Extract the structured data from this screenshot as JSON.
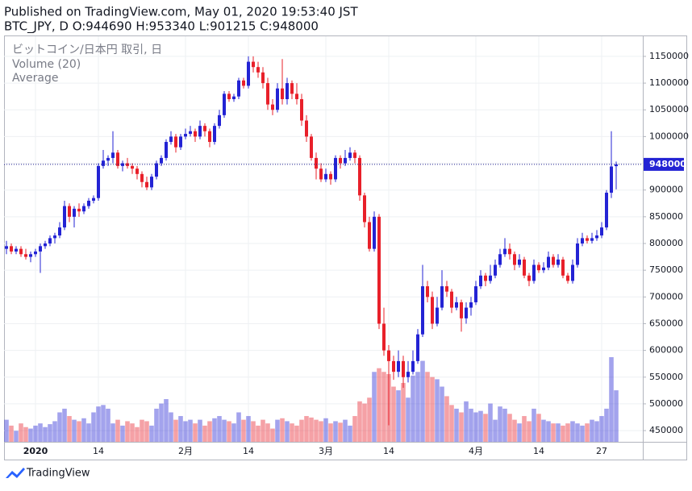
{
  "chart_data": {
    "type": "candlestick",
    "title": "Published on TradingView.com, May 01, 2020 19:53:40 JST",
    "subtitle": "BTC_JPY, D O:944690 H:953340 L:901215 C:948000",
    "legend": [
      "ビットコイン/日本円 取引, 日",
      "Volume (20)",
      "Average"
    ],
    "up_color": "#2323d4",
    "down_color": "#e8202a",
    "grid": true,
    "ylim": [
      429000,
      1168000
    ],
    "yticks": [
      450000,
      500000,
      550000,
      600000,
      650000,
      700000,
      750000,
      800000,
      850000,
      900000,
      950000,
      1000000,
      1050000,
      1100000,
      1150000
    ],
    "categories": [
      null,
      null,
      null,
      null,
      null,
      null,
      "2020",
      null,
      null,
      null,
      null,
      null,
      null,
      null,
      null,
      null,
      null,
      null,
      null,
      "14",
      null,
      null,
      null,
      null,
      null,
      null,
      null,
      null,
      null,
      null,
      null,
      null,
      null,
      null,
      null,
      null,
      null,
      "2月",
      null,
      null,
      null,
      null,
      null,
      null,
      null,
      null,
      null,
      null,
      null,
      null,
      "14",
      null,
      null,
      null,
      null,
      null,
      null,
      null,
      null,
      null,
      null,
      null,
      null,
      null,
      null,
      null,
      "3月",
      null,
      null,
      null,
      null,
      null,
      null,
      null,
      null,
      null,
      null,
      null,
      null,
      "14",
      null,
      null,
      null,
      null,
      null,
      null,
      null,
      null,
      null,
      null,
      null,
      null,
      null,
      null,
      null,
      null,
      null,
      "4月",
      null,
      null,
      null,
      null,
      null,
      null,
      null,
      null,
      null,
      null,
      null,
      null,
      "14",
      null,
      null,
      null,
      null,
      null,
      null,
      null,
      null,
      null,
      null,
      null,
      null,
      "27",
      null,
      null,
      null
    ],
    "ohlc": [
      [
        790000,
        805000,
        780000,
        795000
      ],
      [
        795000,
        800000,
        780000,
        785000
      ],
      [
        785000,
        795000,
        780000,
        790000
      ],
      [
        790000,
        795000,
        775000,
        780000
      ],
      [
        780000,
        790000,
        770000,
        775000
      ],
      [
        775000,
        785000,
        765000,
        780000
      ],
      [
        780000,
        790000,
        775000,
        785000
      ],
      [
        785000,
        800000,
        745000,
        795000
      ],
      [
        795000,
        805000,
        790000,
        800000
      ],
      [
        800000,
        815000,
        795000,
        810000
      ],
      [
        810000,
        820000,
        800000,
        815000
      ],
      [
        815000,
        840000,
        810000,
        830000
      ],
      [
        830000,
        880000,
        825000,
        870000
      ],
      [
        870000,
        875000,
        840000,
        850000
      ],
      [
        850000,
        870000,
        830000,
        865000
      ],
      [
        865000,
        875000,
        850000,
        860000
      ],
      [
        860000,
        875000,
        855000,
        870000
      ],
      [
        870000,
        885000,
        865000,
        880000
      ],
      [
        880000,
        890000,
        875000,
        885000
      ],
      [
        885000,
        950000,
        880000,
        945000
      ],
      [
        945000,
        975000,
        940000,
        955000
      ],
      [
        955000,
        965000,
        945000,
        960000
      ],
      [
        960000,
        1010000,
        950000,
        970000
      ],
      [
        970000,
        975000,
        940000,
        945000
      ],
      [
        945000,
        955000,
        935000,
        950000
      ],
      [
        950000,
        960000,
        940000,
        945000
      ],
      [
        945000,
        950000,
        930000,
        940000
      ],
      [
        940000,
        945000,
        920000,
        930000
      ],
      [
        930000,
        935000,
        905000,
        915000
      ],
      [
        915000,
        925000,
        900000,
        905000
      ],
      [
        905000,
        930000,
        900000,
        925000
      ],
      [
        925000,
        955000,
        920000,
        950000
      ],
      [
        950000,
        965000,
        945000,
        960000
      ],
      [
        960000,
        995000,
        955000,
        990000
      ],
      [
        990000,
        1010000,
        985000,
        1000000
      ],
      [
        1000000,
        1005000,
        970000,
        980000
      ],
      [
        980000,
        1005000,
        975000,
        1000000
      ],
      [
        1000000,
        1015000,
        995000,
        1005000
      ],
      [
        1005000,
        1020000,
        1000000,
        1010000
      ],
      [
        1010000,
        1015000,
        990000,
        1000000
      ],
      [
        1000000,
        1030000,
        995000,
        1020000
      ],
      [
        1020000,
        1025000,
        1000000,
        1010000
      ],
      [
        1010000,
        1015000,
        980000,
        990000
      ],
      [
        990000,
        1025000,
        985000,
        1020000
      ],
      [
        1020000,
        1050000,
        1015000,
        1040000
      ],
      [
        1040000,
        1085000,
        1035000,
        1080000
      ],
      [
        1080000,
        1085000,
        1065000,
        1070000
      ],
      [
        1070000,
        1080000,
        1065000,
        1075000
      ],
      [
        1075000,
        1110000,
        1070000,
        1105000
      ],
      [
        1105000,
        1110000,
        1090000,
        1095000
      ],
      [
        1095000,
        1150000,
        1090000,
        1140000
      ],
      [
        1140000,
        1150000,
        1120000,
        1130000
      ],
      [
        1130000,
        1140000,
        1110000,
        1120000
      ],
      [
        1120000,
        1130000,
        1090000,
        1100000
      ],
      [
        1100000,
        1110000,
        1050000,
        1060000
      ],
      [
        1060000,
        1070000,
        1040000,
        1050000
      ],
      [
        1050000,
        1100000,
        1045000,
        1090000
      ],
      [
        1090000,
        1145000,
        1060000,
        1070000
      ],
      [
        1070000,
        1110000,
        1060000,
        1100000
      ],
      [
        1100000,
        1105000,
        1070000,
        1080000
      ],
      [
        1080000,
        1100000,
        1060000,
        1070000
      ],
      [
        1070000,
        1080000,
        1020000,
        1030000
      ],
      [
        1030000,
        1040000,
        990000,
        1000000
      ],
      [
        1000000,
        1005000,
        955000,
        960000
      ],
      [
        960000,
        970000,
        920000,
        940000
      ],
      [
        940000,
        950000,
        915000,
        920000
      ],
      [
        920000,
        940000,
        915000,
        930000
      ],
      [
        930000,
        935000,
        910000,
        920000
      ],
      [
        920000,
        965000,
        915000,
        960000
      ],
      [
        960000,
        965000,
        940000,
        950000
      ],
      [
        950000,
        975000,
        945000,
        960000
      ],
      [
        960000,
        980000,
        955000,
        970000
      ],
      [
        970000,
        975000,
        950000,
        960000
      ],
      [
        960000,
        965000,
        880000,
        890000
      ],
      [
        890000,
        895000,
        830000,
        840000
      ],
      [
        840000,
        850000,
        785000,
        790000
      ],
      [
        790000,
        860000,
        785000,
        850000
      ],
      [
        850000,
        855000,
        640000,
        650000
      ],
      [
        650000,
        680000,
        590000,
        600000
      ],
      [
        600000,
        610000,
        460000,
        580000
      ],
      [
        580000,
        590000,
        545000,
        560000
      ],
      [
        560000,
        600000,
        550000,
        580000
      ],
      [
        580000,
        590000,
        530000,
        550000
      ],
      [
        550000,
        580000,
        540000,
        560000
      ],
      [
        560000,
        600000,
        555000,
        580000
      ],
      [
        580000,
        640000,
        575000,
        630000
      ],
      [
        630000,
        760000,
        625000,
        720000
      ],
      [
        720000,
        730000,
        690000,
        700000
      ],
      [
        700000,
        710000,
        640000,
        650000
      ],
      [
        650000,
        700000,
        645000,
        680000
      ],
      [
        680000,
        750000,
        675000,
        720000
      ],
      [
        720000,
        730000,
        700000,
        710000
      ],
      [
        710000,
        715000,
        670000,
        680000
      ],
      [
        680000,
        700000,
        675000,
        690000
      ],
      [
        690000,
        695000,
        635000,
        660000
      ],
      [
        660000,
        690000,
        650000,
        680000
      ],
      [
        680000,
        700000,
        665000,
        690000
      ],
      [
        690000,
        730000,
        685000,
        720000
      ],
      [
        720000,
        750000,
        715000,
        740000
      ],
      [
        740000,
        745000,
        720000,
        730000
      ],
      [
        730000,
        760000,
        725000,
        740000
      ],
      [
        740000,
        770000,
        735000,
        760000
      ],
      [
        760000,
        790000,
        755000,
        780000
      ],
      [
        780000,
        810000,
        775000,
        790000
      ],
      [
        790000,
        800000,
        770000,
        780000
      ],
      [
        780000,
        785000,
        750000,
        760000
      ],
      [
        760000,
        780000,
        755000,
        770000
      ],
      [
        770000,
        775000,
        735000,
        740000
      ],
      [
        740000,
        745000,
        720000,
        730000
      ],
      [
        730000,
        770000,
        725000,
        760000
      ],
      [
        760000,
        765000,
        745000,
        750000
      ],
      [
        750000,
        765000,
        745000,
        755000
      ],
      [
        755000,
        785000,
        750000,
        775000
      ],
      [
        775000,
        780000,
        755000,
        760000
      ],
      [
        760000,
        780000,
        755000,
        770000
      ],
      [
        770000,
        775000,
        735000,
        740000
      ],
      [
        740000,
        745000,
        725000,
        730000
      ],
      [
        730000,
        770000,
        725000,
        760000
      ],
      [
        760000,
        810000,
        755000,
        800000
      ],
      [
        800000,
        820000,
        795000,
        810000
      ],
      [
        810000,
        815000,
        800000,
        805000
      ],
      [
        805000,
        820000,
        800000,
        810000
      ],
      [
        810000,
        825000,
        805000,
        815000
      ],
      [
        815000,
        840000,
        810000,
        830000
      ],
      [
        830000,
        900000,
        825000,
        895000
      ],
      [
        895000,
        1010000,
        885000,
        944000
      ],
      [
        944690,
        953340,
        901215,
        948000
      ]
    ],
    "volume": [
      30,
      22,
      15,
      25,
      20,
      18,
      22,
      25,
      20,
      24,
      28,
      40,
      45,
      35,
      30,
      28,
      32,
      25,
      40,
      48,
      50,
      45,
      25,
      30,
      22,
      28,
      25,
      20,
      30,
      28,
      22,
      45,
      52,
      58,
      40,
      30,
      35,
      28,
      30,
      25,
      30,
      22,
      28,
      32,
      35,
      30,
      28,
      25,
      40,
      30,
      35,
      28,
      22,
      30,
      25,
      18,
      30,
      32,
      28,
      25,
      22,
      30,
      35,
      33,
      30,
      28,
      32,
      25,
      28,
      26,
      30,
      22,
      35,
      55,
      52,
      60,
      95,
      100,
      95,
      92,
      75,
      70,
      80,
      60,
      90,
      95,
      110,
      95,
      88,
      85,
      75,
      62,
      50,
      45,
      40,
      55,
      45,
      40,
      42,
      38,
      52,
      30,
      48,
      45,
      38,
      30,
      25,
      35,
      28,
      45,
      38,
      30,
      28,
      25,
      25,
      22,
      25,
      28,
      25,
      22,
      25,
      30,
      28,
      35,
      45,
      115,
      70
    ]
  },
  "footer": {
    "brand": "TradingView"
  }
}
